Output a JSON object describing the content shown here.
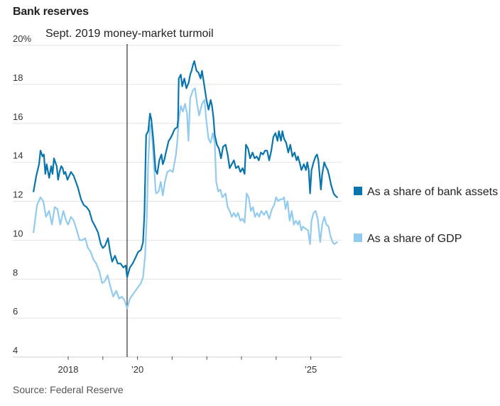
{
  "chart_data": {
    "type": "line",
    "title": "Bank reserves",
    "source": "Source: Federal Reserve",
    "xlabel": "",
    "ylabel": "",
    "xlim": [
      2016.5,
      2025.9
    ],
    "ylim": [
      4,
      20
    ],
    "y_ticks": [
      {
        "value": 20,
        "label": "20%"
      },
      {
        "value": 18,
        "label": "18"
      },
      {
        "value": 16,
        "label": "16"
      },
      {
        "value": 14,
        "label": "14"
      },
      {
        "value": 12,
        "label": "12"
      },
      {
        "value": 10,
        "label": "10"
      },
      {
        "value": 8,
        "label": "8"
      },
      {
        "value": 6,
        "label": "6"
      },
      {
        "value": 4,
        "label": "4"
      }
    ],
    "x_ticks": [
      {
        "value": 2018,
        "label": "2018"
      },
      {
        "value": 2019,
        "label": ""
      },
      {
        "value": 2020,
        "label": "’20"
      },
      {
        "value": 2021,
        "label": ""
      },
      {
        "value": 2022,
        "label": ""
      },
      {
        "value": 2023,
        "label": ""
      },
      {
        "value": 2024,
        "label": ""
      },
      {
        "value": 2025,
        "label": "’25"
      }
    ],
    "grid": true,
    "legend_position": "right",
    "annotation": {
      "x": 2019.7,
      "label": "Sept. 2019 money-market turmoil"
    },
    "series": [
      {
        "name": "As a share of bank assets",
        "color": "#0a75ac",
        "points": [
          [
            2017.0,
            12.5
          ],
          [
            2017.08,
            13.3
          ],
          [
            2017.16,
            13.9
          ],
          [
            2017.2,
            14.6
          ],
          [
            2017.26,
            14.3
          ],
          [
            2017.3,
            14.4
          ],
          [
            2017.34,
            13.4
          ],
          [
            2017.38,
            13.9
          ],
          [
            2017.42,
            13.5
          ],
          [
            2017.45,
            13.2
          ],
          [
            2017.51,
            13.8
          ],
          [
            2017.55,
            13.4
          ],
          [
            2017.59,
            14.2
          ],
          [
            2017.63,
            14.0
          ],
          [
            2017.67,
            13.8
          ],
          [
            2017.71,
            13.1
          ],
          [
            2017.75,
            13.5
          ],
          [
            2017.8,
            13.8
          ],
          [
            2017.84,
            13.7
          ],
          [
            2017.88,
            13.4
          ],
          [
            2017.92,
            13.5
          ],
          [
            2017.98,
            13.1
          ],
          [
            2018.08,
            13.5
          ],
          [
            2018.16,
            13.3
          ],
          [
            2018.28,
            12.7
          ],
          [
            2018.37,
            12.1
          ],
          [
            2018.45,
            11.8
          ],
          [
            2018.53,
            11.7
          ],
          [
            2018.61,
            11.5
          ],
          [
            2018.69,
            11.0
          ],
          [
            2018.78,
            10.7
          ],
          [
            2018.86,
            10.4
          ],
          [
            2018.94,
            9.8
          ],
          [
            2019.0,
            9.6
          ],
          [
            2019.06,
            9.7
          ],
          [
            2019.15,
            10.1
          ],
          [
            2019.21,
            9.4
          ],
          [
            2019.27,
            8.9
          ],
          [
            2019.35,
            9.2
          ],
          [
            2019.43,
            8.8
          ],
          [
            2019.51,
            8.8
          ],
          [
            2019.59,
            8.6
          ],
          [
            2019.66,
            8.7
          ],
          [
            2019.7,
            8.1
          ],
          [
            2019.78,
            8.6
          ],
          [
            2019.86,
            8.8
          ],
          [
            2019.94,
            9.1
          ],
          [
            2020.02,
            9.4
          ],
          [
            2020.1,
            9.5
          ],
          [
            2020.16,
            9.9
          ],
          [
            2020.2,
            11.4
          ],
          [
            2020.24,
            14.7
          ],
          [
            2020.25,
            15.4
          ],
          [
            2020.31,
            15.6
          ],
          [
            2020.36,
            16.5
          ],
          [
            2020.4,
            16.2
          ],
          [
            2020.46,
            15.1
          ],
          [
            2020.52,
            13.6
          ],
          [
            2020.57,
            13.4
          ],
          [
            2020.63,
            14.1
          ],
          [
            2020.69,
            14.4
          ],
          [
            2020.73,
            13.9
          ],
          [
            2020.77,
            14.1
          ],
          [
            2020.82,
            14.5
          ],
          [
            2020.9,
            15.1
          ],
          [
            2020.94,
            15.2
          ],
          [
            2021.0,
            15.4
          ],
          [
            2021.07,
            15.7
          ],
          [
            2021.15,
            15.8
          ],
          [
            2021.17,
            16.2
          ],
          [
            2021.19,
            18.3
          ],
          [
            2021.25,
            18.5
          ],
          [
            2021.29,
            17.9
          ],
          [
            2021.35,
            18.3
          ],
          [
            2021.41,
            17.8
          ],
          [
            2021.48,
            18.1
          ],
          [
            2021.52,
            18.5
          ],
          [
            2021.56,
            18.7
          ],
          [
            2021.6,
            19.0
          ],
          [
            2021.64,
            19.2
          ],
          [
            2021.7,
            18.7
          ],
          [
            2021.76,
            18.6
          ],
          [
            2021.82,
            18.3
          ],
          [
            2021.86,
            18.7
          ],
          [
            2021.93,
            17.9
          ],
          [
            2021.99,
            17.2
          ],
          [
            2022.05,
            16.7
          ],
          [
            2022.11,
            17.2
          ],
          [
            2022.15,
            16.9
          ],
          [
            2022.19,
            16.3
          ],
          [
            2022.23,
            15.4
          ],
          [
            2022.29,
            14.9
          ],
          [
            2022.35,
            14.7
          ],
          [
            2022.41,
            14.2
          ],
          [
            2022.47,
            14.8
          ],
          [
            2022.54,
            14.9
          ],
          [
            2022.6,
            14.4
          ],
          [
            2022.66,
            13.7
          ],
          [
            2022.72,
            13.9
          ],
          [
            2022.78,
            14.1
          ],
          [
            2022.84,
            13.7
          ],
          [
            2022.91,
            13.8
          ],
          [
            2022.97,
            13.5
          ],
          [
            2023.03,
            13.7
          ],
          [
            2023.09,
            13.4
          ],
          [
            2023.13,
            14.9
          ],
          [
            2023.19,
            14.7
          ],
          [
            2023.25,
            14.2
          ],
          [
            2023.32,
            14.5
          ],
          [
            2023.38,
            14.2
          ],
          [
            2023.44,
            14.3
          ],
          [
            2023.5,
            14.1
          ],
          [
            2023.56,
            14.5
          ],
          [
            2023.62,
            14.4
          ],
          [
            2023.68,
            14.6
          ],
          [
            2023.74,
            14.6
          ],
          [
            2023.8,
            14.1
          ],
          [
            2023.86,
            14.6
          ],
          [
            2023.92,
            15.3
          ],
          [
            2023.98,
            15.5
          ],
          [
            2024.04,
            15.1
          ],
          [
            2024.08,
            15.6
          ],
          [
            2024.14,
            15.1
          ],
          [
            2024.18,
            15.6
          ],
          [
            2024.23,
            15.2
          ],
          [
            2024.29,
            15.0
          ],
          [
            2024.35,
            14.5
          ],
          [
            2024.41,
            14.9
          ],
          [
            2024.47,
            14.3
          ],
          [
            2024.53,
            14.5
          ],
          [
            2024.59,
            14.1
          ],
          [
            2024.63,
            14.3
          ],
          [
            2024.69,
            13.9
          ],
          [
            2024.73,
            13.6
          ],
          [
            2024.8,
            13.9
          ],
          [
            2024.86,
            13.6
          ],
          [
            2024.9,
            14.0
          ],
          [
            2024.94,
            13.6
          ],
          [
            2024.98,
            12.4
          ],
          [
            2025.02,
            13.6
          ],
          [
            2025.08,
            14.0
          ],
          [
            2025.14,
            14.3
          ],
          [
            2025.18,
            14.4
          ],
          [
            2025.22,
            14.1
          ],
          [
            2025.29,
            12.6
          ],
          [
            2025.33,
            13.4
          ],
          [
            2025.39,
            14.0
          ],
          [
            2025.43,
            13.8
          ],
          [
            2025.49,
            13.6
          ],
          [
            2025.53,
            13.3
          ],
          [
            2025.59,
            12.8
          ],
          [
            2025.66,
            12.4
          ],
          [
            2025.7,
            12.3
          ],
          [
            2025.76,
            12.2
          ]
        ]
      },
      {
        "name": "As a share of GDP",
        "color": "#92cbee",
        "points": [
          [
            2017.0,
            10.4
          ],
          [
            2017.1,
            11.8
          ],
          [
            2017.2,
            12.2
          ],
          [
            2017.28,
            12.0
          ],
          [
            2017.36,
            11.2
          ],
          [
            2017.45,
            11.5
          ],
          [
            2017.53,
            10.8
          ],
          [
            2017.61,
            11.7
          ],
          [
            2017.69,
            11.6
          ],
          [
            2017.77,
            10.8
          ],
          [
            2017.86,
            11.5
          ],
          [
            2017.94,
            11.0
          ],
          [
            2018.0,
            10.8
          ],
          [
            2018.08,
            11.2
          ],
          [
            2018.16,
            11.0
          ],
          [
            2018.25,
            10.5
          ],
          [
            2018.33,
            10.0
          ],
          [
            2018.41,
            10.0
          ],
          [
            2018.49,
            10.1
          ],
          [
            2018.57,
            9.6
          ],
          [
            2018.65,
            9.4
          ],
          [
            2018.73,
            9.0
          ],
          [
            2018.81,
            8.8
          ],
          [
            2018.9,
            8.4
          ],
          [
            2018.98,
            7.8
          ],
          [
            2019.06,
            7.9
          ],
          [
            2019.14,
            8.2
          ],
          [
            2019.22,
            7.6
          ],
          [
            2019.3,
            7.1
          ],
          [
            2019.39,
            7.4
          ],
          [
            2019.47,
            7.0
          ],
          [
            2019.55,
            7.1
          ],
          [
            2019.63,
            6.9
          ],
          [
            2019.7,
            6.5
          ],
          [
            2019.78,
            7.0
          ],
          [
            2019.86,
            7.2
          ],
          [
            2019.94,
            7.4
          ],
          [
            2020.02,
            7.6
          ],
          [
            2020.1,
            7.8
          ],
          [
            2020.16,
            8.1
          ],
          [
            2020.22,
            9.2
          ],
          [
            2020.27,
            11.3
          ],
          [
            2020.31,
            14.0
          ],
          [
            2020.36,
            15.8
          ],
          [
            2020.4,
            16.0
          ],
          [
            2020.46,
            14.3
          ],
          [
            2020.52,
            12.6
          ],
          [
            2020.54,
            12.4
          ],
          [
            2020.61,
            12.5
          ],
          [
            2020.67,
            13.0
          ],
          [
            2020.73,
            12.3
          ],
          [
            2020.79,
            13.0
          ],
          [
            2020.86,
            13.5
          ],
          [
            2020.94,
            13.6
          ],
          [
            2021.02,
            13.5
          ],
          [
            2021.11,
            14.4
          ],
          [
            2021.15,
            15.1
          ],
          [
            2021.19,
            16.2
          ],
          [
            2021.25,
            16.9
          ],
          [
            2021.31,
            16.6
          ],
          [
            2021.37,
            17.0
          ],
          [
            2021.43,
            16.5
          ],
          [
            2021.47,
            15.1
          ],
          [
            2021.52,
            17.3
          ],
          [
            2021.6,
            17.7
          ],
          [
            2021.66,
            17.8
          ],
          [
            2021.72,
            17.0
          ],
          [
            2021.78,
            16.4
          ],
          [
            2021.86,
            17.0
          ],
          [
            2021.93,
            17.2
          ],
          [
            2021.99,
            16.1
          ],
          [
            2022.05,
            15.2
          ],
          [
            2022.11,
            15.0
          ],
          [
            2022.17,
            15.5
          ],
          [
            2022.23,
            15.0
          ],
          [
            2022.27,
            13.0
          ],
          [
            2022.33,
            12.5
          ],
          [
            2022.39,
            12.6
          ],
          [
            2022.45,
            12.2
          ],
          [
            2022.54,
            12.4
          ],
          [
            2022.6,
            11.7
          ],
          [
            2022.66,
            11.5
          ],
          [
            2022.72,
            11.2
          ],
          [
            2022.78,
            11.4
          ],
          [
            2022.84,
            11.2
          ],
          [
            2022.9,
            11.4
          ],
          [
            2022.97,
            11.0
          ],
          [
            2023.03,
            11.1
          ],
          [
            2023.09,
            10.9
          ],
          [
            2023.15,
            12.4
          ],
          [
            2023.21,
            12.2
          ],
          [
            2023.27,
            11.5
          ],
          [
            2023.33,
            11.7
          ],
          [
            2023.39,
            11.2
          ],
          [
            2023.45,
            11.4
          ],
          [
            2023.51,
            11.2
          ],
          [
            2023.57,
            11.5
          ],
          [
            2023.65,
            11.3
          ],
          [
            2023.72,
            11.5
          ],
          [
            2023.8,
            11.1
          ],
          [
            2023.88,
            11.6
          ],
          [
            2023.94,
            11.8
          ],
          [
            2024.0,
            12.2
          ],
          [
            2024.06,
            12.0
          ],
          [
            2024.12,
            12.1
          ],
          [
            2024.18,
            12.1
          ],
          [
            2024.23,
            12.2
          ],
          [
            2024.27,
            11.6
          ],
          [
            2024.33,
            12.0
          ],
          [
            2024.39,
            11.0
          ],
          [
            2024.45,
            11.5
          ],
          [
            2024.51,
            10.8
          ],
          [
            2024.57,
            11.0
          ],
          [
            2024.63,
            10.8
          ],
          [
            2024.67,
            11.0
          ],
          [
            2024.73,
            10.5
          ],
          [
            2024.77,
            10.7
          ],
          [
            2024.84,
            10.6
          ],
          [
            2024.92,
            10.5
          ],
          [
            2024.98,
            9.8
          ],
          [
            2025.02,
            11.0
          ],
          [
            2025.08,
            11.4
          ],
          [
            2025.14,
            11.5
          ],
          [
            2025.2,
            11.1
          ],
          [
            2025.27,
            9.9
          ],
          [
            2025.33,
            10.8
          ],
          [
            2025.39,
            11.2
          ],
          [
            2025.45,
            10.8
          ],
          [
            2025.51,
            10.7
          ],
          [
            2025.57,
            10.2
          ],
          [
            2025.63,
            9.9
          ],
          [
            2025.68,
            9.8
          ],
          [
            2025.76,
            9.9
          ]
        ]
      }
    ]
  }
}
